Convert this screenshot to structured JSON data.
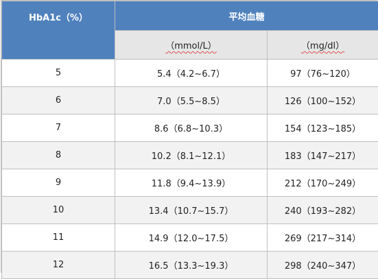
{
  "table": {
    "header": {
      "hba1c_label": "HbA1c（%）",
      "avg_glucose_label": "平均血糖",
      "unit_mmol": "（mmol/L）",
      "unit_mgdl": "（mg/dl）"
    },
    "rows": [
      {
        "hba1c": "5",
        "mmol": "5.4（4.2~6.7）",
        "mgdl": "97（76~120）"
      },
      {
        "hba1c": "6",
        "mmol": "7.0（5.5~8.5）",
        "mgdl": "126（100~152）"
      },
      {
        "hba1c": "7",
        "mmol": "8.6（6.8~10.3）",
        "mgdl": "154（123~185）"
      },
      {
        "hba1c": "8",
        "mmol": "10.2（8.1~12.1）",
        "mgdl": "183（147~217）"
      },
      {
        "hba1c": "9",
        "mmol": "11.8（9.4~13.9）",
        "mgdl": "212（170~249）"
      },
      {
        "hba1c": "10",
        "mmol": "13.4（10.7~15.7）",
        "mgdl": "240（193~282）"
      },
      {
        "hba1c": "11",
        "mmol": "14.9（12.0~17.5）",
        "mgdl": "269（217~314）"
      },
      {
        "hba1c": "12",
        "mmol": "16.5（13.3~19.3）",
        "mgdl": "298（240~347）"
      }
    ],
    "colors": {
      "header_bg": "#4f81bd",
      "subheader_bg": "#e6e6e6",
      "stripe_bg": "#f2f2f2",
      "border": "#bfbfbf"
    }
  }
}
